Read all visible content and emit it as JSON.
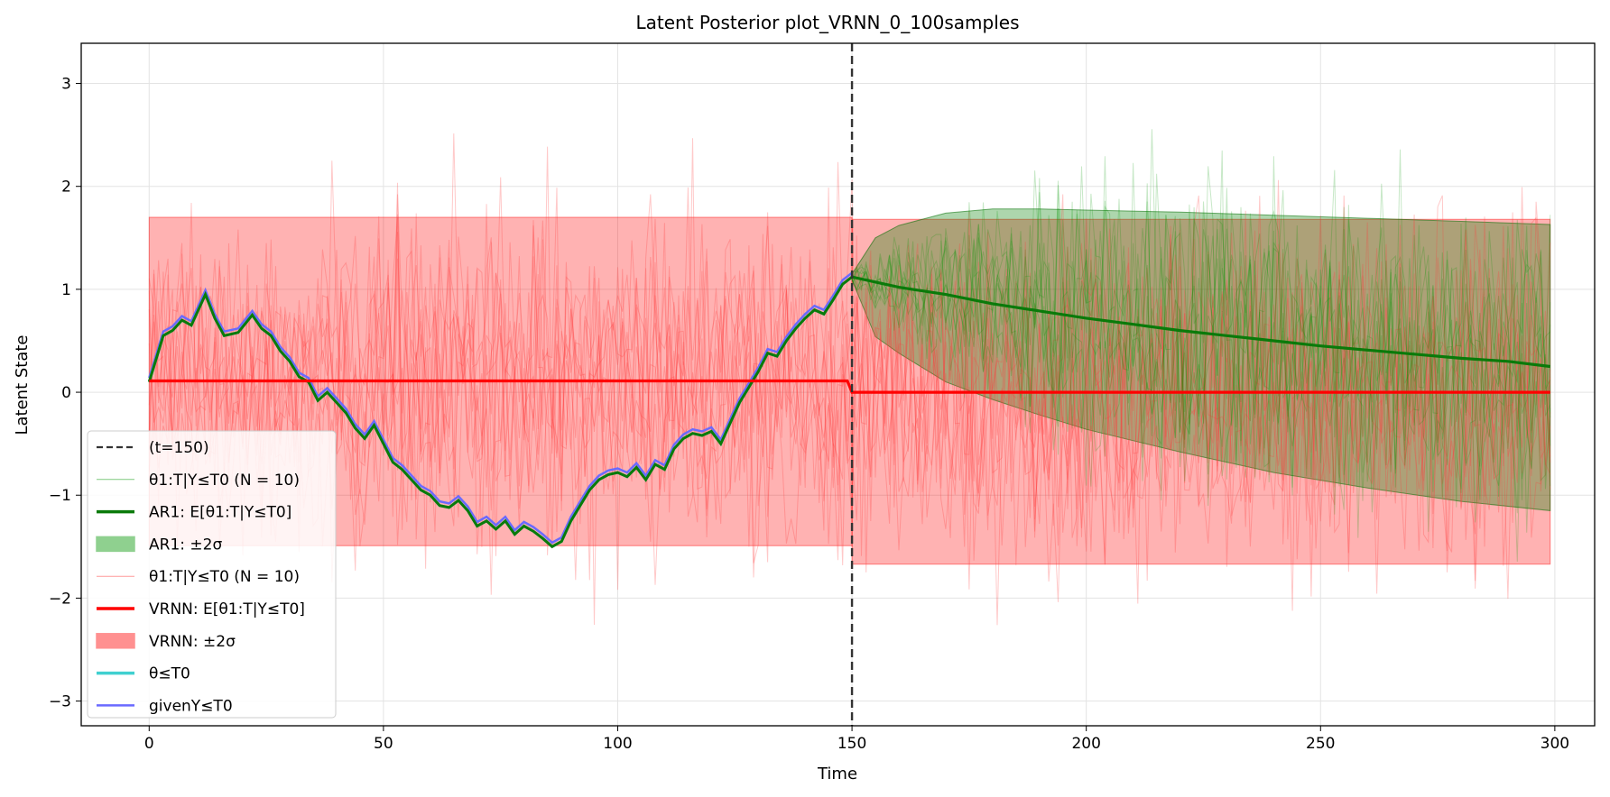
{
  "chart_data": {
    "type": "line",
    "title": "Latent Posterior plot_VRNN_0_100samples",
    "xlabel": "Time",
    "ylabel": "Latent State",
    "xlim": [
      -14.5,
      308.5
    ],
    "ylim": [
      -3.24,
      3.39
    ],
    "xticks": [
      0,
      50,
      100,
      150,
      200,
      250,
      300
    ],
    "xtick_labels": [
      "0",
      "50",
      "100",
      "150",
      "200",
      "250",
      "300"
    ],
    "yticks": [
      -3,
      -2,
      -1,
      0,
      1,
      2,
      3
    ],
    "ytick_labels": [
      "−3",
      "−2",
      "−1",
      "0",
      "1",
      "2",
      "3"
    ],
    "grid": true,
    "legend_position": "lower-left",
    "vline": {
      "x": 150,
      "label": "(t=150)"
    },
    "colors": {
      "ar1": "#008000",
      "vrnn": "#ff0000",
      "truth": "#40d0d0",
      "given": "#6a6aff",
      "vline": "#333333"
    },
    "legend": [
      {
        "kind": "dashed",
        "color": "#333333",
        "label": "(t=150)"
      },
      {
        "kind": "thin",
        "color": "#7fc97f",
        "label": "θ1:T|Y≤T0 (N = 10)"
      },
      {
        "kind": "thick",
        "color": "#0a7a0a",
        "label": "AR1: E[θ1:T|Y≤T0]"
      },
      {
        "kind": "patch",
        "color": "#8fd08f",
        "label": "AR1: ±2σ"
      },
      {
        "kind": "thin",
        "color": "#ff9a9a",
        "label": "θ1:T|Y≤T0 (N = 10)"
      },
      {
        "kind": "thick",
        "color": "#ff0000",
        "label": "VRNN: E[θ1:T|Y≤T0]"
      },
      {
        "kind": "patch",
        "color": "#ff9090",
        "label": "VRNN: ±2σ"
      },
      {
        "kind": "thick",
        "color": "#40d0d0",
        "label": "θ≤T0"
      },
      {
        "kind": "medium",
        "color": "#6a6aff",
        "label": "givenY≤T0"
      }
    ],
    "series": [
      {
        "name": "θ≤T0",
        "x": [
          0,
          3,
          5,
          7,
          9,
          12,
          14,
          16,
          19,
          22,
          24,
          26,
          28,
          30,
          32,
          34,
          36,
          38,
          40,
          42,
          44,
          46,
          48,
          50,
          52,
          54,
          56,
          58,
          60,
          62,
          64,
          66,
          68,
          70,
          72,
          74,
          76,
          78,
          80,
          82,
          84,
          86,
          88,
          90,
          92,
          94,
          96,
          98,
          100,
          102,
          104,
          106,
          108,
          110,
          112,
          114,
          116,
          118,
          120,
          122,
          124,
          126,
          128,
          130,
          132,
          134,
          136,
          138,
          140,
          142,
          144,
          146,
          148,
          150
        ],
        "y": [
          0.1,
          0.55,
          0.6,
          0.7,
          0.65,
          0.95,
          0.72,
          0.55,
          0.58,
          0.75,
          0.62,
          0.55,
          0.4,
          0.3,
          0.15,
          0.1,
          -0.08,
          0.0,
          -0.1,
          -0.2,
          -0.35,
          -0.45,
          -0.32,
          -0.5,
          -0.68,
          -0.75,
          -0.85,
          -0.95,
          -1.0,
          -1.1,
          -1.12,
          -1.05,
          -1.15,
          -1.3,
          -1.25,
          -1.33,
          -1.25,
          -1.38,
          -1.3,
          -1.35,
          -1.42,
          -1.5,
          -1.45,
          -1.25,
          -1.1,
          -0.95,
          -0.85,
          -0.8,
          -0.78,
          -0.82,
          -0.73,
          -0.85,
          -0.7,
          -0.75,
          -0.55,
          -0.45,
          -0.4,
          -0.42,
          -0.38,
          -0.5,
          -0.3,
          -0.1,
          0.05,
          0.2,
          0.38,
          0.35,
          0.5,
          0.62,
          0.72,
          0.8,
          0.76,
          0.9,
          1.05,
          1.12
        ]
      },
      {
        "name": "AR1: E[θ1:T|Y≤T0]",
        "x": [
          150,
          160,
          170,
          180,
          190,
          200,
          210,
          220,
          230,
          240,
          250,
          260,
          270,
          280,
          290,
          299
        ],
        "y": [
          1.12,
          1.02,
          0.95,
          0.86,
          0.79,
          0.72,
          0.66,
          0.6,
          0.55,
          0.5,
          0.45,
          0.41,
          0.37,
          0.33,
          0.3,
          0.25
        ]
      },
      {
        "name": "VRNN: E[θ1:T|Y≤T0]",
        "x": [
          0,
          149,
          150,
          299
        ],
        "y": [
          0.11,
          0.11,
          0.0,
          0.0
        ]
      }
    ],
    "bands": [
      {
        "name": "VRNN: ±2σ",
        "x": [
          0,
          150
        ],
        "lower": [
          -1.49,
          -1.49
        ],
        "upper": [
          1.7,
          1.7
        ]
      },
      {
        "name": "VRNN: ±2σ",
        "x": [
          150,
          299
        ],
        "lower": [
          -1.67,
          -1.67
        ],
        "upper": [
          1.68,
          1.68
        ]
      },
      {
        "name": "AR1: ±2σ",
        "x": [
          150,
          155,
          160,
          170,
          180,
          190,
          200,
          220,
          240,
          260,
          280,
          299
        ],
        "upper": [
          1.15,
          1.5,
          1.62,
          1.74,
          1.78,
          1.78,
          1.77,
          1.75,
          1.72,
          1.69,
          1.66,
          1.63
        ],
        "lower": [
          1.09,
          0.54,
          0.38,
          0.1,
          -0.07,
          -0.22,
          -0.36,
          -0.58,
          -0.78,
          -0.93,
          -1.06,
          -1.15
        ]
      }
    ]
  }
}
